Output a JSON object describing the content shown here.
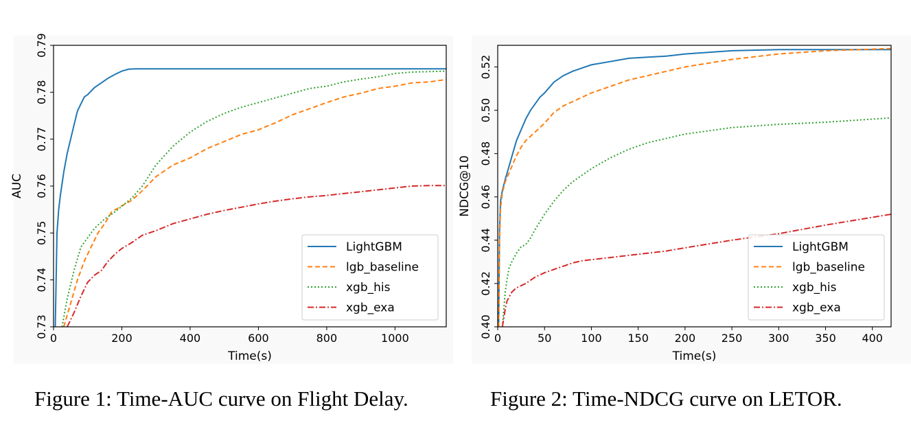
{
  "chart_data": [
    {
      "type": "line",
      "caption": "Figure 1: Time-AUC curve on Flight Delay.",
      "title": "",
      "xlabel": "Time(s)",
      "ylabel": "AUC",
      "xlim": [
        0,
        1150
      ],
      "ylim": [
        0.73,
        0.79
      ],
      "xticks": [
        0,
        200,
        400,
        600,
        800,
        1000
      ],
      "xtick_labels": [
        "0",
        "200",
        "400",
        "600",
        "800",
        "1000"
      ],
      "yticks": [
        0.73,
        0.74,
        0.75,
        0.76,
        0.77,
        0.78,
        0.79
      ],
      "ytick_labels": [
        "0.73",
        "0.74",
        "0.75",
        "0.76",
        "0.77",
        "0.78",
        "0.79"
      ],
      "legend_position": "lower-right",
      "series": [
        {
          "name": "LightGBM",
          "color": "#1f77b4",
          "dash": "solid",
          "x": [
            5,
            10,
            15,
            20,
            30,
            40,
            50,
            60,
            70,
            80,
            90,
            100,
            120,
            140,
            160,
            180,
            200,
            220,
            240,
            400,
            600,
            800,
            1000,
            1150
          ],
          "y": [
            0.73,
            0.75,
            0.755,
            0.758,
            0.763,
            0.767,
            0.77,
            0.773,
            0.776,
            0.7775,
            0.779,
            0.7795,
            0.781,
            0.782,
            0.783,
            0.7838,
            0.7845,
            0.7849,
            0.785,
            0.785,
            0.785,
            0.785,
            0.785,
            0.785
          ]
        },
        {
          "name": "lgb_baseline",
          "color": "#ff7f0e",
          "dash": "dashed",
          "x": [
            30,
            50,
            70,
            90,
            110,
            130,
            150,
            170,
            200,
            230,
            260,
            300,
            350,
            400,
            450,
            500,
            550,
            600,
            650,
            700,
            750,
            800,
            850,
            900,
            950,
            1000,
            1050,
            1100,
            1150
          ],
          "y": [
            0.73,
            0.735,
            0.74,
            0.744,
            0.747,
            0.75,
            0.752,
            0.7545,
            0.7558,
            0.757,
            0.759,
            0.762,
            0.7645,
            0.766,
            0.768,
            0.7695,
            0.771,
            0.772,
            0.7735,
            0.7752,
            0.7765,
            0.7778,
            0.779,
            0.7798,
            0.7808,
            0.7813,
            0.782,
            0.7822,
            0.7827
          ]
        },
        {
          "name": "xgb_his",
          "color": "#2ca02c",
          "dash": "dotted",
          "x": [
            25,
            40,
            60,
            80,
            100,
            120,
            150,
            180,
            200,
            230,
            260,
            300,
            350,
            400,
            450,
            500,
            550,
            600,
            650,
            700,
            750,
            800,
            850,
            900,
            950,
            1000,
            1050,
            1100,
            1150
          ],
          "y": [
            0.73,
            0.736,
            0.742,
            0.747,
            0.749,
            0.751,
            0.753,
            0.7545,
            0.7557,
            0.7575,
            0.76,
            0.7645,
            0.7685,
            0.7715,
            0.7738,
            0.7755,
            0.7768,
            0.7778,
            0.7788,
            0.7798,
            0.7808,
            0.7813,
            0.7822,
            0.7828,
            0.7833,
            0.784,
            0.7843,
            0.7844,
            0.7845
          ]
        },
        {
          "name": "xgb_exa",
          "color": "#d62728",
          "dash": "dashdot",
          "x": [
            40,
            60,
            80,
            100,
            120,
            140,
            160,
            180,
            200,
            230,
            260,
            300,
            350,
            400,
            450,
            500,
            550,
            600,
            650,
            700,
            750,
            800,
            850,
            900,
            950,
            1000,
            1050,
            1100,
            1150
          ],
          "y": [
            0.73,
            0.733,
            0.7365,
            0.7395,
            0.741,
            0.742,
            0.744,
            0.7455,
            0.7467,
            0.748,
            0.7495,
            0.7505,
            0.752,
            0.753,
            0.754,
            0.7548,
            0.7555,
            0.7562,
            0.7568,
            0.7573,
            0.7577,
            0.758,
            0.7584,
            0.7588,
            0.7592,
            0.7596,
            0.76,
            0.7601,
            0.7601
          ]
        }
      ]
    },
    {
      "type": "line",
      "caption": "Figure 2: Time-NDCG curve on LETOR.",
      "title": "",
      "xlabel": "Time(s)",
      "ylabel": "NDCG@10",
      "xlim": [
        0,
        420
      ],
      "ylim": [
        0.4,
        0.53
      ],
      "xticks": [
        0,
        50,
        100,
        150,
        200,
        250,
        300,
        350,
        400
      ],
      "xtick_labels": [
        "0",
        "50",
        "100",
        "150",
        "200",
        "250",
        "300",
        "350",
        "400"
      ],
      "yticks": [
        0.4,
        0.42,
        0.44,
        0.46,
        0.48,
        0.5,
        0.52
      ],
      "ytick_labels": [
        "0.40",
        "0.42",
        "0.44",
        "0.46",
        "0.48",
        "0.50",
        "0.52"
      ],
      "legend_position": "lower-right",
      "series": [
        {
          "name": "LightGBM",
          "color": "#1f77b4",
          "dash": "solid",
          "x": [
            1,
            2,
            3,
            5,
            8,
            12,
            16,
            20,
            25,
            30,
            35,
            40,
            45,
            50,
            60,
            70,
            80,
            90,
            100,
            120,
            140,
            160,
            180,
            200,
            250,
            300,
            350,
            420
          ],
          "y": [
            0.4,
            0.445,
            0.458,
            0.463,
            0.468,
            0.474,
            0.48,
            0.486,
            0.491,
            0.496,
            0.5,
            0.503,
            0.506,
            0.508,
            0.513,
            0.516,
            0.518,
            0.5195,
            0.521,
            0.5225,
            0.524,
            0.5245,
            0.525,
            0.526,
            0.5275,
            0.528,
            0.528,
            0.528
          ]
        },
        {
          "name": "lgb_baseline",
          "color": "#ff7f0e",
          "dash": "dashed",
          "x": [
            1,
            2,
            3,
            5,
            8,
            12,
            16,
            20,
            25,
            30,
            40,
            50,
            60,
            70,
            80,
            90,
            100,
            120,
            140,
            160,
            180,
            200,
            250,
            300,
            350,
            420
          ],
          "y": [
            0.4,
            0.44,
            0.455,
            0.462,
            0.467,
            0.471,
            0.475,
            0.479,
            0.483,
            0.486,
            0.49,
            0.494,
            0.499,
            0.502,
            0.504,
            0.506,
            0.508,
            0.511,
            0.514,
            0.516,
            0.518,
            0.52,
            0.5235,
            0.526,
            0.5275,
            0.5285
          ]
        },
        {
          "name": "xgb_his",
          "color": "#2ca02c",
          "dash": "dotted",
          "x": [
            5,
            8,
            10,
            12,
            15,
            20,
            25,
            30,
            35,
            40,
            50,
            60,
            70,
            80,
            90,
            100,
            120,
            140,
            160,
            180,
            200,
            250,
            300,
            350,
            420
          ],
          "y": [
            0.4,
            0.416,
            0.422,
            0.427,
            0.43,
            0.434,
            0.437,
            0.438,
            0.441,
            0.445,
            0.452,
            0.458,
            0.463,
            0.467,
            0.47,
            0.473,
            0.478,
            0.482,
            0.485,
            0.487,
            0.489,
            0.492,
            0.4935,
            0.4945,
            0.4965
          ]
        },
        {
          "name": "xgb_exa",
          "color": "#d62728",
          "dash": "dashdot",
          "x": [
            5,
            8,
            10,
            15,
            20,
            30,
            40,
            50,
            60,
            70,
            80,
            90,
            100,
            120,
            140,
            160,
            180,
            200,
            250,
            300,
            350,
            420
          ],
          "y": [
            0.4,
            0.408,
            0.412,
            0.416,
            0.418,
            0.42,
            0.423,
            0.425,
            0.4265,
            0.428,
            0.4295,
            0.4305,
            0.431,
            0.432,
            0.433,
            0.434,
            0.435,
            0.4365,
            0.44,
            0.443,
            0.447,
            0.452
          ]
        }
      ]
    }
  ]
}
